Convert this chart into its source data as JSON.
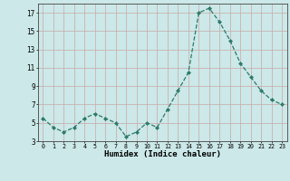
{
  "x": [
    0,
    1,
    2,
    3,
    4,
    5,
    6,
    7,
    8,
    9,
    10,
    11,
    12,
    13,
    14,
    15,
    16,
    17,
    18,
    19,
    20,
    21,
    22,
    23
  ],
  "y": [
    5.5,
    4.5,
    4.0,
    4.5,
    5.5,
    6.0,
    5.5,
    5.0,
    3.5,
    4.0,
    5.0,
    4.5,
    6.5,
    8.5,
    10.5,
    17.0,
    17.5,
    16.0,
    14.0,
    11.5,
    10.0,
    8.5,
    7.5,
    7.0
  ],
  "line_color": "#2d7a6a",
  "marker_color": "#2d7a6a",
  "bg_color": "#cce8e8",
  "grid_color": "#c8a8a8",
  "xlabel": "Humidex (Indice chaleur)",
  "ylim": [
    3,
    18
  ],
  "xlim": [
    -0.5,
    23.5
  ],
  "yticks": [
    3,
    5,
    7,
    9,
    11,
    13,
    15,
    17
  ],
  "xtick_labels": [
    "0",
    "1",
    "2",
    "3",
    "4",
    "5",
    "6",
    "7",
    "8",
    "9",
    "10",
    "11",
    "12",
    "13",
    "14",
    "15",
    "16",
    "17",
    "18",
    "19",
    "20",
    "21",
    "22",
    "23"
  ]
}
